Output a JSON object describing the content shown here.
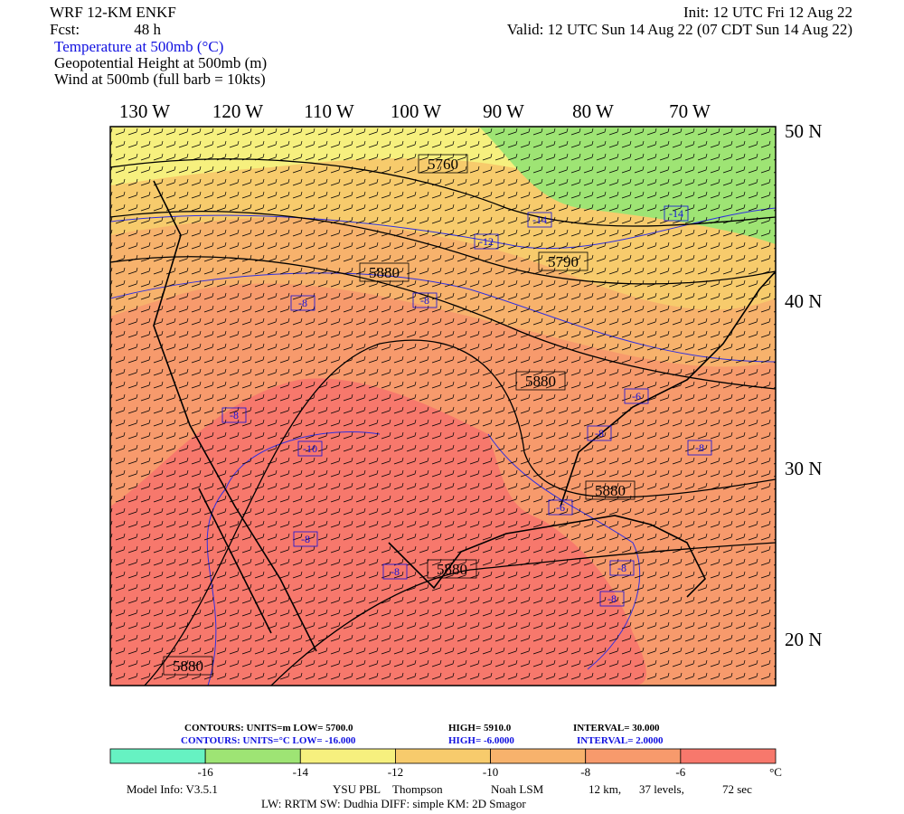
{
  "header": {
    "model": "WRF 12-KM ENKF",
    "init": "Init: 12 UTC Fri 12 Aug 22",
    "fcst_label": "Fcst:",
    "fcst": "48 h",
    "valid": "Valid: 12 UTC Sun 14 Aug 22 (07 CDT Sun 14 Aug 22)",
    "fields": [
      "Temperature at 500mb (°C)",
      "Geopotential Height at 500mb (m)",
      "Wind at 500mb (full barb = 10kts)"
    ]
  },
  "map": {
    "lon_labels": [
      "130 W",
      "120 W",
      "110 W",
      "100 W",
      "90 W",
      "80 W",
      "70 W"
    ],
    "lat_labels": [
      "50 N",
      "40 N",
      "30 N",
      "20 N"
    ],
    "height_labels": [
      "5760",
      "5790",
      "5880",
      "5880",
      "5880",
      "5880",
      "5880"
    ],
    "temp_labels": [
      "-14",
      "-14",
      "-12",
      "-8",
      "-8",
      "-6",
      "-8",
      "-10",
      "-8",
      "-8",
      "-6",
      "-8",
      "-8",
      "-8",
      "-8"
    ]
  },
  "contour_info": {
    "height": [
      "CONTOURS:  UNITS=m  LOW=  5700.0",
      "HIGH=  5910.0",
      "INTERVAL=   30.000"
    ],
    "temperature": [
      "CONTOURS:  UNITS=°C  LOW= -16.000",
      "HIGH= -6.0000",
      "INTERVAL=   2.0000"
    ]
  },
  "colorbar": {
    "colors": [
      "#66f2c2",
      "#9ee474",
      "#f6f07e",
      "#f7cb6c",
      "#f7b26c",
      "#f79a6c",
      "#f7786c"
    ],
    "ticks": [
      "-16",
      "-14",
      "-12",
      "-10",
      "-8",
      "-6"
    ],
    "unit": "°C"
  },
  "footer": {
    "line1": [
      "Model Info: V3.5.1",
      "YSU PBL",
      "Thompson",
      "Noah LSM",
      "12 km,",
      "37 levels,",
      "72 sec"
    ],
    "line2": "LW: RRTM SW: Dudhia  DIFF: simple  KM: 2D Smagor"
  }
}
